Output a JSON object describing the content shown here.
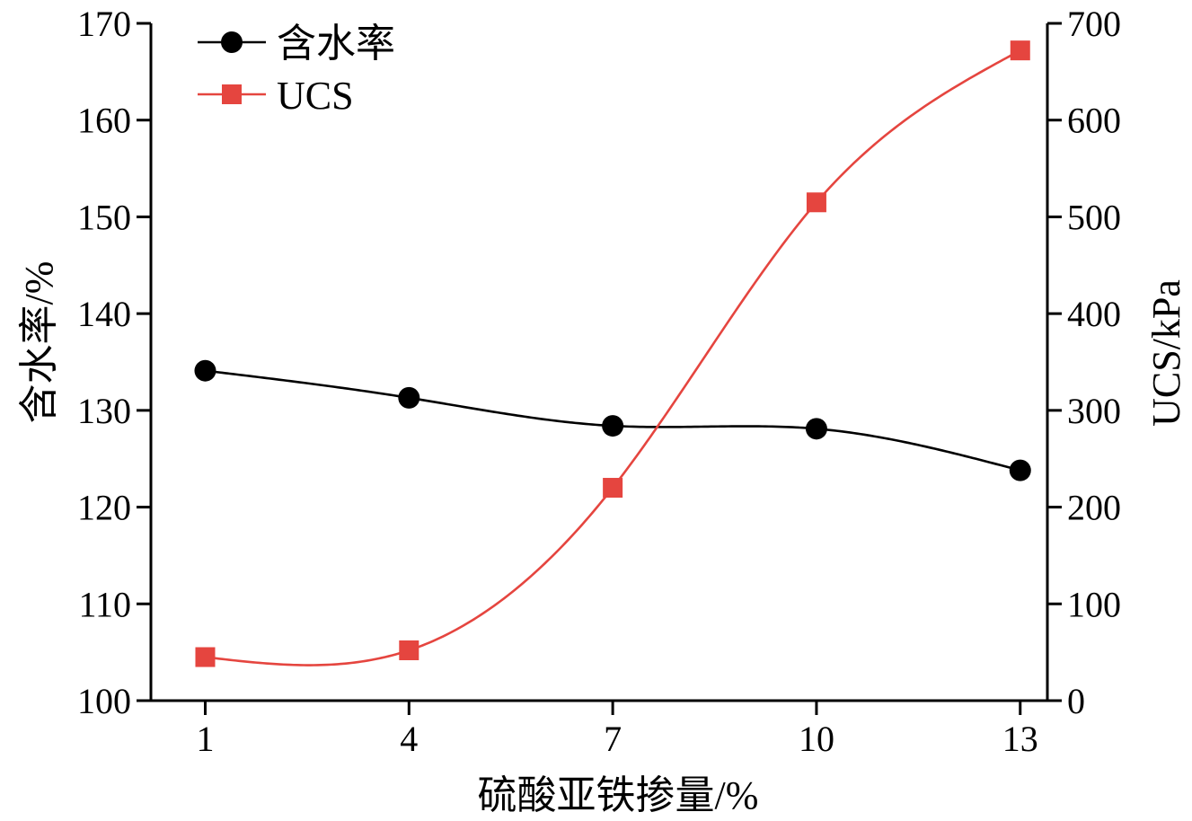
{
  "chart_data": {
    "type": "line",
    "xlabel": "硫酸亚铁掺量/%",
    "ylabel_left": "含水率/%",
    "ylabel_right": "UCS/kPa",
    "x": [
      1,
      4,
      7,
      10,
      13
    ],
    "x_ticks": [
      "1",
      "4",
      "7",
      "10",
      "13"
    ],
    "ylim_left": [
      100,
      170
    ],
    "ylim_right": [
      0,
      700
    ],
    "y_ticks_left": [
      "100",
      "110",
      "120",
      "130",
      "140",
      "150",
      "160",
      "170"
    ],
    "y_ticks_right": [
      "0",
      "100",
      "200",
      "300",
      "400",
      "500",
      "600",
      "700"
    ],
    "legend_position": "top-left",
    "grid": false,
    "series": [
      {
        "name": "含水率",
        "axis": "left",
        "marker": "circle",
        "color": "#000000",
        "values": [
          134.1,
          131.3,
          128.4,
          128.1,
          123.8
        ]
      },
      {
        "name": "UCS",
        "axis": "right",
        "marker": "square",
        "color": "#e5453f",
        "values": [
          45,
          52,
          220,
          515,
          672
        ]
      }
    ]
  }
}
